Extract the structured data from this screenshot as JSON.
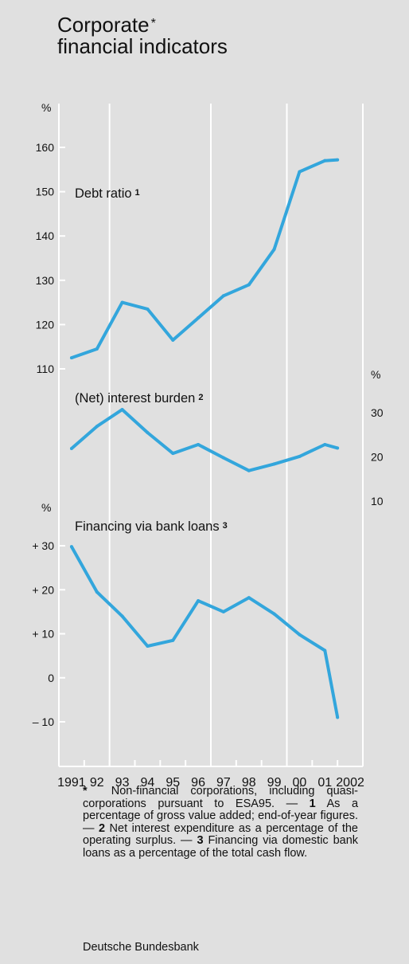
{
  "header": {
    "title_line1": "Corporate",
    "title_mark": "*",
    "title_line2": "financial indicators"
  },
  "chart_data": [
    {
      "type": "line",
      "title": "Debt ratio",
      "note_marker": "1",
      "unit_label": "%",
      "x": [
        1991.5,
        1992.5,
        1993.5,
        1994.5,
        1995.5,
        1996.5,
        1997.5,
        1998.5,
        1999.5,
        2000.5,
        2001.5,
        2002
      ],
      "values": [
        112.5,
        114.5,
        125,
        123.5,
        116.5,
        121.5,
        126.5,
        129,
        137,
        154.5,
        157,
        157.2
      ],
      "ylim": [
        110,
        160
      ],
      "yticks": [
        110,
        120,
        130,
        140,
        150,
        160
      ],
      "ytick_labels": [
        "110",
        "120",
        "130",
        "140",
        "150",
        "160"
      ],
      "color": "#33a6dc"
    },
    {
      "type": "line",
      "title": "(Net) interest burden",
      "note_marker": "2",
      "unit_label": "%",
      "x": [
        1991.5,
        1992.5,
        1993.5,
        1994.5,
        1995.5,
        1996.5,
        1997.5,
        1998.5,
        1999.5,
        2000.5,
        2001.5,
        2002
      ],
      "values": [
        21.9,
        26.9,
        30.7,
        25.5,
        20.8,
        22.8,
        19.8,
        16.9,
        18.4,
        20.1,
        22.8,
        22
      ],
      "ylim": [
        10,
        30
      ],
      "yticks": [
        10,
        20,
        30
      ],
      "ytick_labels": [
        "10",
        "20",
        "30"
      ],
      "axis_side": "right",
      "color": "#33a6dc"
    },
    {
      "type": "line",
      "title": "Financing via bank loans",
      "note_marker": "3",
      "unit_label": "%",
      "x": [
        1991.5,
        1992.5,
        1993.5,
        1994.5,
        1995.5,
        1996.5,
        1997.5,
        1998.5,
        1999.5,
        2000.5,
        2001.5,
        2002
      ],
      "values": [
        29.8,
        19.5,
        14,
        7.2,
        8.5,
        17.5,
        15,
        18.2,
        14.5,
        9.8,
        6.2,
        -9
      ],
      "ylim": [
        -10,
        30
      ],
      "yticks": [
        -10,
        0,
        10,
        20,
        30
      ],
      "ytick_labels": [
        "– 10",
        "0",
        "+ 10",
        "+ 20",
        "+ 30"
      ],
      "color": "#33a6dc"
    }
  ],
  "x_axis": {
    "years": [
      1991,
      1992,
      1993,
      1994,
      1995,
      1996,
      1997,
      1998,
      1999,
      2000,
      2001,
      2002
    ],
    "labels": [
      "1991",
      "92",
      "93",
      "94",
      "95",
      "96",
      "97",
      "98",
      "99",
      "00",
      "01",
      "2002"
    ],
    "gridlines_at": [
      1993,
      1997,
      2000
    ]
  },
  "footnotes": {
    "star_mark": "*",
    "star_text": "Non-financial corporations, including quasi-corporations pursuant to ESA95. —",
    "n1_mark": "1",
    "n1_text": "As a percentage of gross value added; end-of-year figures. —",
    "n2_mark": "2",
    "n2_text": "Net interest expenditure as a percentage of the operating surplus. —",
    "n3_mark": "3",
    "n3_text": "Financing via domestic bank loans as a percentage of the total cash flow."
  },
  "source": "Deutsche Bundesbank"
}
